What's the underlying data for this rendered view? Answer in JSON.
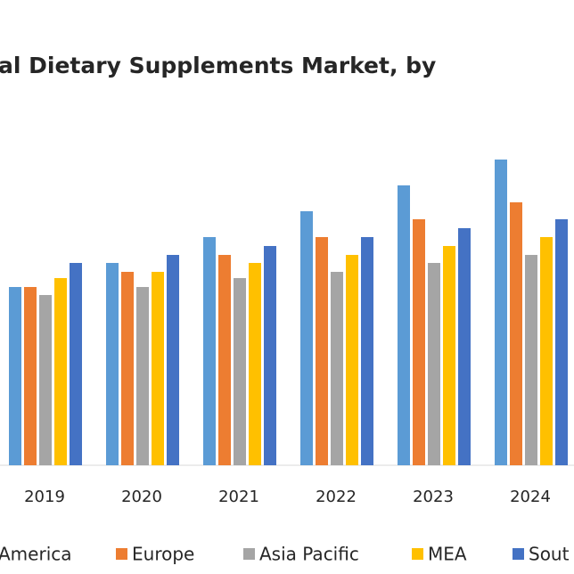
{
  "chart_data": {
    "type": "bar",
    "title": "al Dietary Supplements Market, by",
    "categories": [
      "2019",
      "2020",
      "2021",
      "2022",
      "2023",
      "2024"
    ],
    "series": [
      {
        "name": "America",
        "color": "#5b9bd5",
        "values": [
          200,
          227,
          256,
          285,
          314,
          343
        ]
      },
      {
        "name": "Europe",
        "color": "#ed7d31",
        "values": [
          200,
          217,
          236,
          256,
          276,
          295
        ]
      },
      {
        "name": "Asia Pacific",
        "color": "#a5a5a5",
        "values": [
          191,
          200,
          210,
          217,
          227,
          236
        ]
      },
      {
        "name": "MEA",
        "color": "#ffc000",
        "values": [
          210,
          217,
          227,
          236,
          246,
          256
        ]
      },
      {
        "name": "Sout",
        "color": "#4472c4",
        "values": [
          227,
          236,
          246,
          256,
          266,
          276
        ]
      }
    ],
    "ylim": [
      0,
      360
    ]
  }
}
